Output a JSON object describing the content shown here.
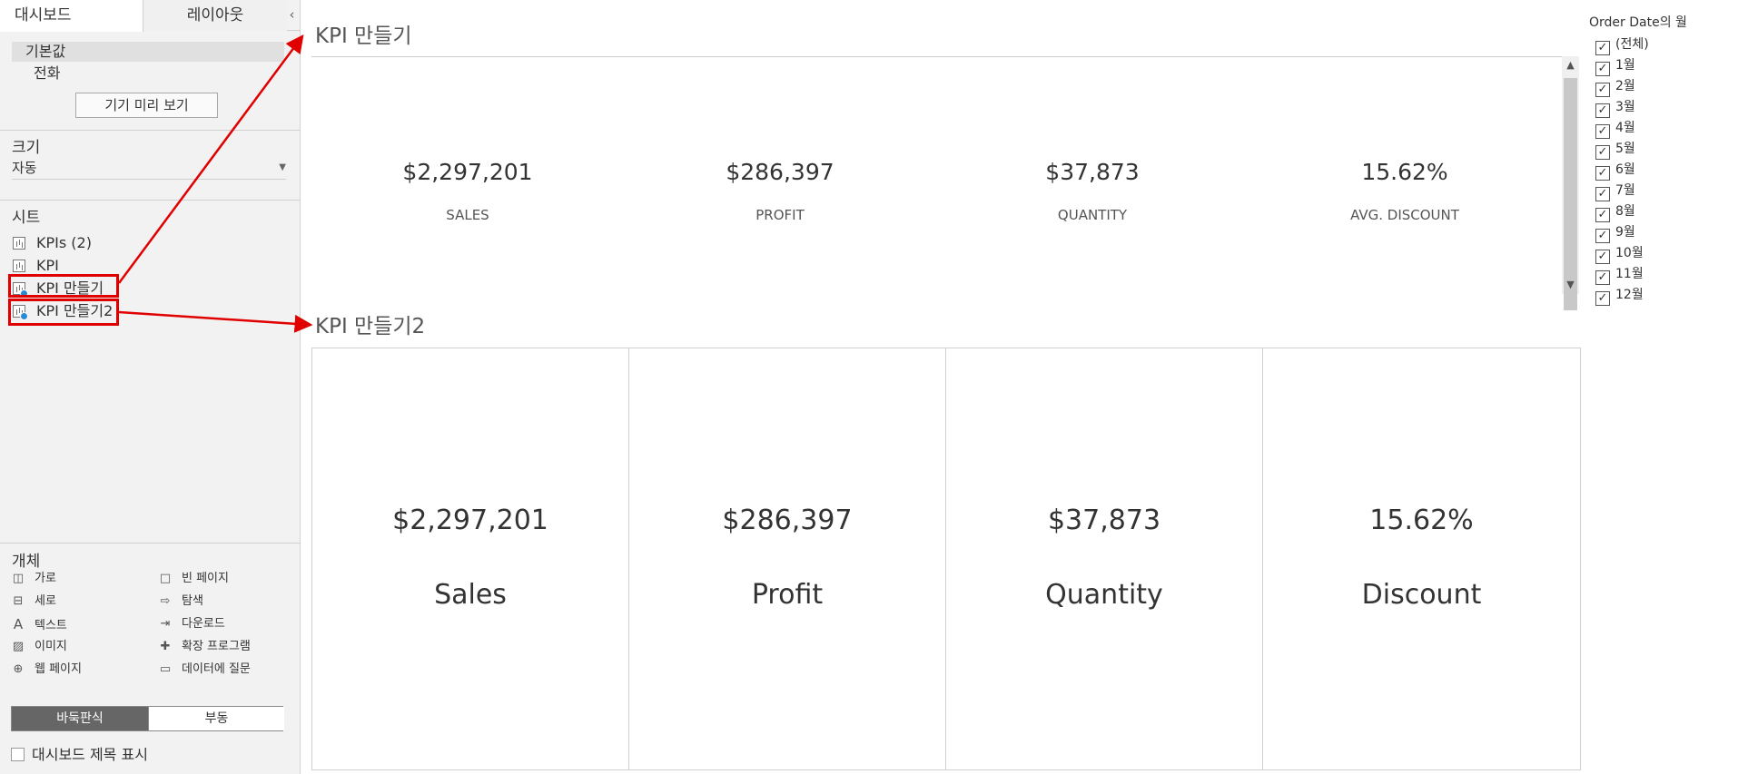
{
  "left_panel": {
    "tabs": {
      "dashboard": "대시보드",
      "layout": "레이아웃",
      "collapse_glyph": "‹"
    },
    "device": {
      "default": "기본값",
      "phone": "전화",
      "preview_button": "기기 미리 보기"
    },
    "size": {
      "title": "크기",
      "value": "자동"
    },
    "sheets": {
      "title": "시트",
      "items": [
        "KPIs (2)",
        "KPI",
        "KPI 만들기",
        "KPI 만들기2"
      ]
    },
    "objects": {
      "title": "개체",
      "items": [
        {
          "label": "가로",
          "icon": "horizontal-container-icon"
        },
        {
          "label": "빈 페이지",
          "icon": "blank-icon"
        },
        {
          "label": "세로",
          "icon": "vertical-container-icon"
        },
        {
          "label": "탐색",
          "icon": "navigation-icon"
        },
        {
          "label": "텍스트",
          "icon": "text-icon"
        },
        {
          "label": "다운로드",
          "icon": "download-icon"
        },
        {
          "label": "이미지",
          "icon": "image-icon"
        },
        {
          "label": "확장 프로그램",
          "icon": "extension-icon"
        },
        {
          "label": "웹 페이지",
          "icon": "web-page-icon"
        },
        {
          "label": "데이터에 질문",
          "icon": "ask-data-icon"
        }
      ]
    },
    "layout_mode": {
      "tiled": "바둑판식",
      "floating": "부동"
    },
    "show_title": "대시보드 제목 표시"
  },
  "dashboard": {
    "sheet1": {
      "title": "KPI 만들기",
      "kpis": [
        {
          "value": "$2,297,201",
          "label": "SALES"
        },
        {
          "value": "$286,397",
          "label": "PROFIT"
        },
        {
          "value": "$37,873",
          "label": "QUANTITY"
        },
        {
          "value": "15.62%",
          "label": "AVG. DISCOUNT"
        }
      ]
    },
    "sheet2": {
      "title": "KPI 만들기2",
      "kpis": [
        {
          "value": "$2,297,201",
          "label": "Sales"
        },
        {
          "value": "$286,397",
          "label": "Profit"
        },
        {
          "value": "$37,873",
          "label": "Quantity"
        },
        {
          "value": "15.62%",
          "label": "Discount"
        }
      ]
    }
  },
  "filter": {
    "title": "Order Date의 월",
    "items": [
      "(전체)",
      "1월",
      "2월",
      "3월",
      "4월",
      "5월",
      "6월",
      "7월",
      "8월",
      "9월",
      "10월",
      "11월",
      "12월"
    ],
    "checked_glyph": "✓"
  },
  "colors": {
    "annotation_red": "#e10000",
    "tiled_selected": "#666666"
  }
}
